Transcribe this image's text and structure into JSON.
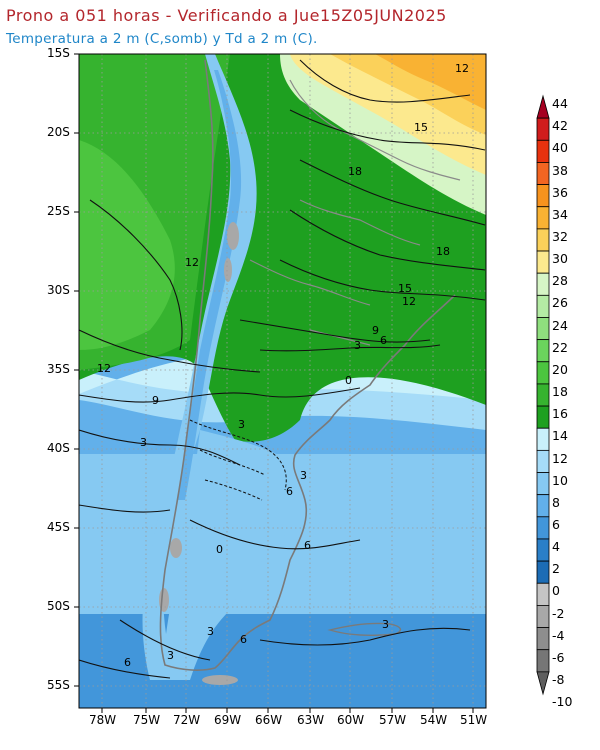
{
  "header": {
    "title": "Prono a 051 horas - Verificando a Jue15Z05JUN2025",
    "subtitle": "Temperatura a 2 m (C,somb) y Td a 2 m (C)."
  },
  "axes": {
    "lat_labels": [
      "15S",
      "20S",
      "25S",
      "30S",
      "35S",
      "40S",
      "45S",
      "50S",
      "55S"
    ],
    "lon_labels": [
      "78W",
      "75W",
      "72W",
      "69W",
      "66W",
      "63W",
      "60W",
      "57W",
      "54W",
      "51W"
    ]
  },
  "colorbar": {
    "levels": [
      "44",
      "42",
      "40",
      "38",
      "36",
      "34",
      "32",
      "30",
      "28",
      "26",
      "24",
      "22",
      "20",
      "18",
      "16",
      "14",
      "12",
      "10",
      "8",
      "6",
      "4",
      "2",
      "0",
      "-2",
      "-4",
      "-6",
      "-8",
      "-10"
    ],
    "colors": [
      "#a50021",
      "#d01c1c",
      "#e8320e",
      "#f26522",
      "#f7931e",
      "#f9b233",
      "#fbd15a",
      "#fce98e",
      "#d6f5c6",
      "#b4eba4",
      "#8fdf7e",
      "#6bd45d",
      "#4cc53f",
      "#36b32f",
      "#1ea020",
      "#c9f0fb",
      "#a6dcf8",
      "#86c9f2",
      "#62b0ea",
      "#4296da",
      "#2a7fc8",
      "#1c6cb5",
      "#c4c4c4",
      "#a8a8a8",
      "#8e8e8e",
      "#767676",
      "#5e5e5e"
    ]
  },
  "map": {
    "contour_labels": [
      "12",
      "15",
      "18",
      "18",
      "15",
      "12",
      "12",
      "12",
      "9",
      "9",
      "6",
      "3",
      "6",
      "3",
      "0",
      "6",
      "3",
      "6",
      "3",
      "0",
      "3",
      "6",
      "3",
      "3"
    ]
  }
}
